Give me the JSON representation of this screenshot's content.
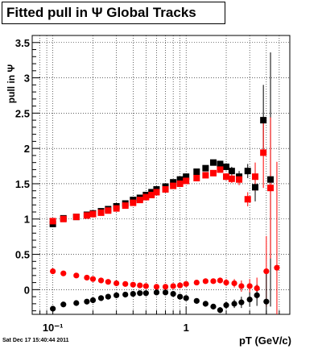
{
  "chart_data": {
    "type": "scatter",
    "title": "Fitted pull in  Ψ   Global Tracks",
    "xlabel": "pT (GeV/c)",
    "ylabel": "pull in Ψ",
    "xscale": "log",
    "xlim": [
      0.07,
      6.0
    ],
    "ylim": [
      -0.35,
      3.6
    ],
    "y_ticks": [
      0,
      0.5,
      1,
      1.5,
      2,
      2.5,
      3,
      3.5
    ],
    "y_tick_labels": [
      "0",
      "0.5",
      "1",
      "1.5",
      "2",
      "2.5",
      "3",
      "3.5"
    ],
    "x_ticks": [
      0.1,
      1
    ],
    "x_tick_labels": [
      "10⁻¹",
      "1"
    ],
    "grid": true,
    "series": [
      {
        "color": "#000000",
        "marker": "square",
        "x": [
          0.1,
          0.12,
          0.15,
          0.18,
          0.2,
          0.23,
          0.26,
          0.3,
          0.35,
          0.4,
          0.45,
          0.5,
          0.55,
          0.6,
          0.7,
          0.8,
          0.9,
          1.0,
          1.2,
          1.4,
          1.6,
          1.8,
          2.0,
          2.2,
          2.5,
          2.9,
          3.3,
          3.8,
          4.3
        ],
        "y": [
          0.93,
          1.01,
          1.03,
          1.06,
          1.08,
          1.11,
          1.14,
          1.18,
          1.22,
          1.27,
          1.3,
          1.34,
          1.38,
          1.42,
          1.46,
          1.52,
          1.56,
          1.6,
          1.67,
          1.72,
          1.8,
          1.78,
          1.74,
          1.68,
          1.6,
          1.68,
          1.45,
          2.4,
          1.56
        ],
        "yerr": [
          0.02,
          0.01,
          0.01,
          0.01,
          0.01,
          0.01,
          0.01,
          0.01,
          0.01,
          0.01,
          0.01,
          0.01,
          0.01,
          0.01,
          0.01,
          0.01,
          0.01,
          0.02,
          0.02,
          0.03,
          0.03,
          0.04,
          0.05,
          0.06,
          0.08,
          0.1,
          0.2,
          0.5,
          1.8
        ]
      },
      {
        "color": "#ff0000",
        "marker": "square",
        "x": [
          0.1,
          0.12,
          0.15,
          0.18,
          0.2,
          0.23,
          0.26,
          0.3,
          0.35,
          0.4,
          0.45,
          0.5,
          0.55,
          0.6,
          0.7,
          0.8,
          0.9,
          1.0,
          1.2,
          1.4,
          1.6,
          1.8,
          2.0,
          2.2,
          2.5,
          2.9,
          3.3,
          3.8,
          4.3
        ],
        "y": [
          0.97,
          1.0,
          1.03,
          1.05,
          1.07,
          1.09,
          1.12,
          1.15,
          1.19,
          1.23,
          1.27,
          1.31,
          1.34,
          1.38,
          1.42,
          1.47,
          1.5,
          1.54,
          1.58,
          1.62,
          1.65,
          1.7,
          1.6,
          1.57,
          1.56,
          1.28,
          1.6,
          1.94,
          1.44
        ],
        "yerr": [
          0.02,
          0.01,
          0.01,
          0.01,
          0.01,
          0.01,
          0.01,
          0.01,
          0.01,
          0.01,
          0.01,
          0.01,
          0.01,
          0.01,
          0.01,
          0.01,
          0.01,
          0.02,
          0.02,
          0.03,
          0.03,
          0.04,
          0.05,
          0.06,
          0.08,
          0.1,
          0.2,
          0.5,
          1.0
        ]
      },
      {
        "color": "#ff0000",
        "marker": "circle",
        "x": [
          0.1,
          0.12,
          0.15,
          0.18,
          0.2,
          0.23,
          0.26,
          0.3,
          0.35,
          0.4,
          0.45,
          0.5,
          0.6,
          0.7,
          0.8,
          0.9,
          1.0,
          1.2,
          1.4,
          1.6,
          1.8,
          2.0,
          2.3,
          2.6,
          3.0,
          3.4,
          4.0,
          4.8
        ],
        "y": [
          0.26,
          0.23,
          0.2,
          0.17,
          0.15,
          0.13,
          0.11,
          0.09,
          0.08,
          0.07,
          0.06,
          0.05,
          0.04,
          0.04,
          0.05,
          0.06,
          0.08,
          0.1,
          0.12,
          0.12,
          0.13,
          0.1,
          0.09,
          0.05,
          0.05,
          0.02,
          0.26,
          0.31
        ],
        "yerr": [
          0.01,
          0.01,
          0.01,
          0.01,
          0.01,
          0.01,
          0.01,
          0.01,
          0.01,
          0.01,
          0.01,
          0.01,
          0.01,
          0.01,
          0.01,
          0.01,
          0.01,
          0.02,
          0.02,
          0.03,
          0.04,
          0.05,
          0.06,
          0.08,
          0.1,
          0.15,
          0.5,
          1.5
        ]
      },
      {
        "color": "#000000",
        "marker": "circle",
        "x": [
          0.1,
          0.12,
          0.15,
          0.18,
          0.2,
          0.23,
          0.26,
          0.3,
          0.35,
          0.4,
          0.45,
          0.5,
          0.6,
          0.7,
          0.8,
          0.9,
          1.0,
          1.2,
          1.4,
          1.6,
          1.8,
          2.0,
          2.3,
          2.6,
          3.0,
          3.4,
          4.0
        ],
        "y": [
          -0.27,
          -0.21,
          -0.19,
          -0.17,
          -0.15,
          -0.12,
          -0.1,
          -0.08,
          -0.07,
          -0.06,
          -0.05,
          -0.05,
          -0.04,
          -0.04,
          -0.06,
          -0.1,
          -0.12,
          -0.16,
          -0.2,
          -0.24,
          -0.29,
          -0.22,
          -0.2,
          -0.18,
          -0.14,
          -0.08,
          -0.17
        ],
        "yerr": [
          0.01,
          0.01,
          0.01,
          0.01,
          0.01,
          0.01,
          0.01,
          0.01,
          0.01,
          0.01,
          0.01,
          0.01,
          0.01,
          0.01,
          0.01,
          0.01,
          0.01,
          0.02,
          0.02,
          0.03,
          0.04,
          0.05,
          0.06,
          0.08,
          0.1,
          0.15,
          0.4
        ]
      }
    ]
  },
  "footer": {
    "timestamp": "Sat Dec 17 15:40:44 2011"
  }
}
